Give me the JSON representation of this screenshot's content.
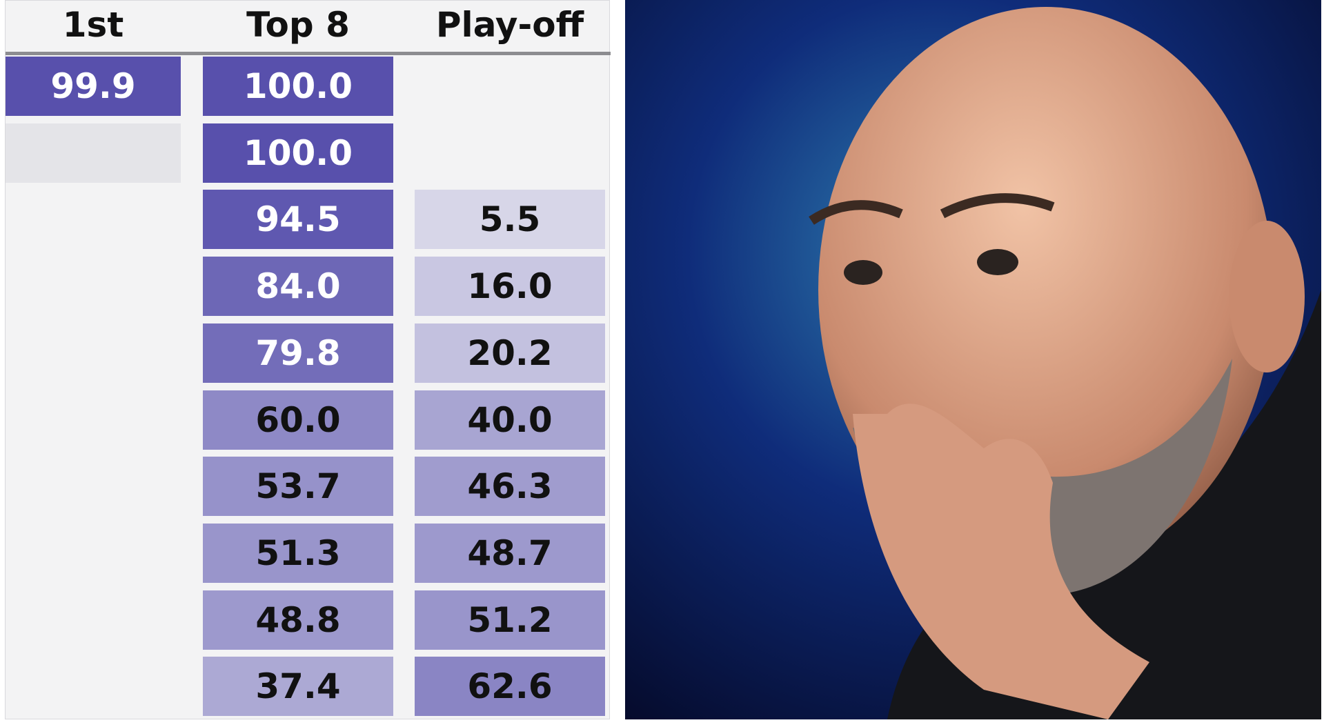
{
  "table": {
    "headers": [
      "1st",
      "Top 8",
      "Play-off"
    ],
    "rows": [
      [
        "99.9",
        "100.0",
        null
      ],
      [
        null,
        "100.0",
        null
      ],
      [
        null,
        "94.5",
        "5.5"
      ],
      [
        null,
        "84.0",
        "16.0"
      ],
      [
        null,
        "79.8",
        "20.2"
      ],
      [
        null,
        "60.0",
        "40.0"
      ],
      [
        null,
        "53.7",
        "46.3"
      ],
      [
        null,
        "51.3",
        "48.7"
      ],
      [
        null,
        "48.8",
        "51.2"
      ],
      [
        null,
        "37.4",
        "62.6"
      ]
    ]
  }
}
